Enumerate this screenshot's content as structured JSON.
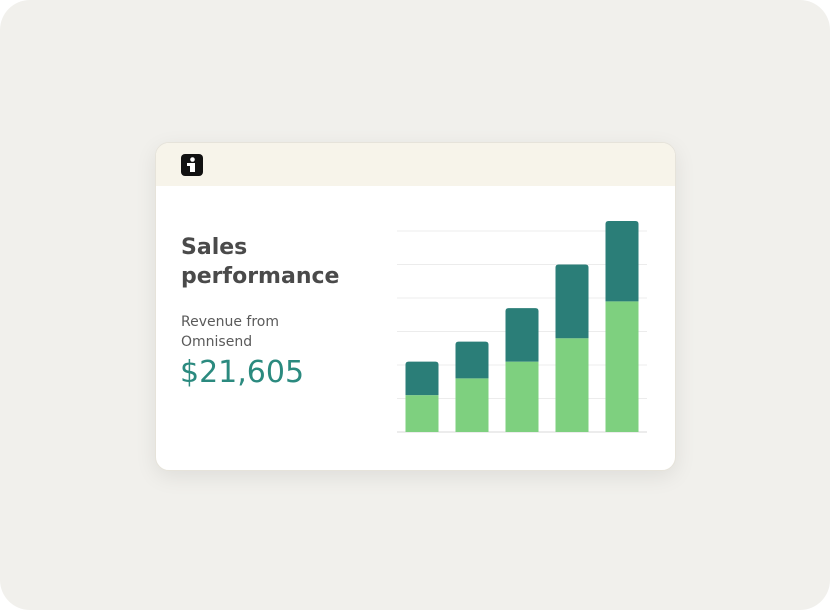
{
  "card": {
    "title": "Sales performance",
    "subtitle": "Revenue from Omnisend",
    "value": "$21,605"
  },
  "chart_data": {
    "type": "bar",
    "stacked": true,
    "series": [
      {
        "color": "#7ed07f",
        "values": [
          1.1,
          1.6,
          2.1,
          2.8,
          3.9
        ]
      },
      {
        "color": "#2b7e78",
        "values": [
          1.0,
          1.1,
          1.6,
          2.2,
          2.4
        ]
      }
    ],
    "ylim": [
      0,
      6.3
    ],
    "yticks": [
      0,
      1,
      2,
      3,
      4,
      5,
      6
    ],
    "grid": true
  }
}
